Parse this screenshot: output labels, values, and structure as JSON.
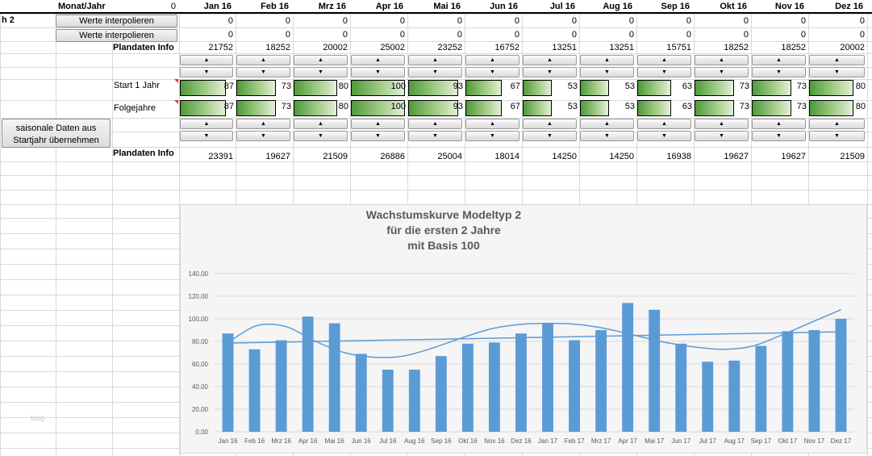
{
  "header": {
    "row_label": "h 2",
    "monat_jahr": "Monat/Jahr",
    "zero": "0",
    "months": [
      "Jan 16",
      "Feb 16",
      "Mrz 16",
      "Apr 16",
      "Mai 16",
      "Jun 16",
      "Jul 16",
      "Aug 16",
      "Sep 16",
      "Okt 16",
      "Nov 16",
      "Dez 16"
    ]
  },
  "buttons": {
    "interp1": "Werte interpolieren",
    "interp2": "Werte interpolieren",
    "saisonal_line1": "saisonale Daten aus",
    "saisonal_line2": "Startjahr übernehmen"
  },
  "rows": {
    "interp1_values": [
      "0",
      "0",
      "0",
      "0",
      "0",
      "0",
      "0",
      "0",
      "0",
      "0",
      "0",
      "0"
    ],
    "interp2_values": [
      "0",
      "0",
      "0",
      "0",
      "0",
      "0",
      "0",
      "0",
      "0",
      "0",
      "0",
      "0"
    ],
    "plandaten_label": "Plandaten Info",
    "plandaten1": [
      "21752",
      "18252",
      "20002",
      "25002",
      "23252",
      "16752",
      "13251",
      "13251",
      "15751",
      "18252",
      "18252",
      "20002"
    ],
    "start_label": "Start 1 Jahr",
    "start_values": [
      87,
      73,
      80,
      100,
      93,
      67,
      53,
      53,
      63,
      73,
      73,
      80
    ],
    "folge_label": "Folgejahre",
    "folge_values": [
      87,
      73,
      80,
      100,
      93,
      67,
      53,
      53,
      63,
      73,
      73,
      80
    ],
    "plandaten2_label": "Plandaten Info",
    "plandaten2": [
      "23391",
      "19627",
      "21509",
      "26886",
      "25004",
      "18014",
      "14250",
      "14250",
      "16938",
      "19627",
      "19627",
      "21509"
    ]
  },
  "watermark": "blog",
  "chart_data": {
    "type": "bar",
    "title": [
      "Wachstumskurve Modeltyp 2",
      "für die ersten 2 Jahre",
      "mit Basis 100"
    ],
    "categories": [
      "Jan 16",
      "Feb 16",
      "Mrz 16",
      "Apr 16",
      "Mai 16",
      "Jun 16",
      "Jul 16",
      "Aug 16",
      "Sep 16",
      "Okt 16",
      "Nov 16",
      "Dez 16",
      "Jan 17",
      "Feb 17",
      "Mrz 17",
      "Apr 17",
      "Mai 17",
      "Jun 17",
      "Jul 17",
      "Aug 17",
      "Sep 17",
      "Okt 17",
      "Nov 17",
      "Dez 17"
    ],
    "values": [
      87,
      73,
      81,
      102,
      96,
      69,
      55,
      55,
      67,
      78,
      79,
      87,
      96,
      81,
      90,
      114,
      108,
      78,
      62,
      63,
      76,
      89,
      90,
      100
    ],
    "trend_linear": [
      78.5,
      88.5
    ],
    "trend_poly": [
      79,
      94,
      93,
      80,
      70,
      66,
      67,
      74,
      83,
      91,
      95,
      96,
      95,
      91,
      85,
      79,
      75,
      73,
      76,
      86,
      97,
      108
    ],
    "yticks": [
      "0,00",
      "20,00",
      "40,00",
      "60,00",
      "80,00",
      "100,00",
      "120,00",
      "140,00"
    ],
    "ylim": [
      0,
      140
    ],
    "grid": true,
    "legend": "none",
    "colors": {
      "bar": "#5b9bd5",
      "line": "#5b9bd5"
    }
  }
}
